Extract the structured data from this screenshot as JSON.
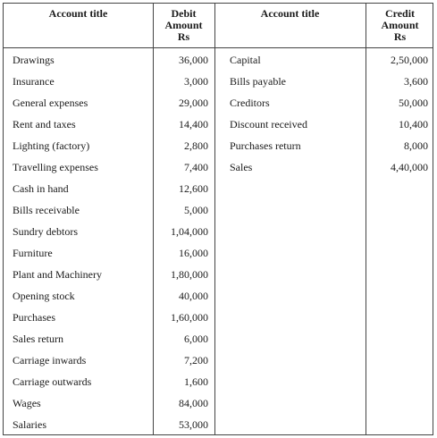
{
  "headers": {
    "debit_title": "Account title",
    "debit_amount": [
      "Debit",
      "Amount",
      "Rs"
    ],
    "credit_title": "Account title",
    "credit_amount": [
      "Credit",
      "Amount",
      "Rs"
    ]
  },
  "debit_rows": [
    {
      "title": "Drawings",
      "amount": "36,000"
    },
    {
      "title": "Insurance",
      "amount": "3,000"
    },
    {
      "title": "General expenses",
      "amount": "29,000"
    },
    {
      "title": "Rent and taxes",
      "amount": "14,400"
    },
    {
      "title": "Lighting (factory)",
      "amount": "2,800"
    },
    {
      "title": "Travelling expenses",
      "amount": "7,400"
    },
    {
      "title": "Cash in hand",
      "amount": "12,600"
    },
    {
      "title": "Bills receivable",
      "amount": "5,000"
    },
    {
      "title": "Sundry debtors",
      "amount": "1,04,000"
    },
    {
      "title": "Furniture",
      "amount": "16,000"
    },
    {
      "title": "Plant and Machinery",
      "amount": "1,80,000"
    },
    {
      "title": "Opening stock",
      "amount": "40,000"
    },
    {
      "title": "Purchases",
      "amount": "1,60,000"
    },
    {
      "title": "Sales return",
      "amount": "6,000"
    },
    {
      "title": "Carriage inwards",
      "amount": "7,200"
    },
    {
      "title": "Carriage outwards",
      "amount": "1,600"
    },
    {
      "title": "Wages",
      "amount": "84,000"
    },
    {
      "title": "Salaries",
      "amount": "53,000"
    }
  ],
  "credit_rows": [
    {
      "title": "Capital",
      "amount": "2,50,000"
    },
    {
      "title": "Bills payable",
      "amount": "3,600"
    },
    {
      "title": "Creditors",
      "amount": "50,000"
    },
    {
      "title": "Discount received",
      "amount": "10,400"
    },
    {
      "title": "Purchases return",
      "amount": "8,000"
    },
    {
      "title": "Sales",
      "amount": "4,40,000"
    }
  ]
}
